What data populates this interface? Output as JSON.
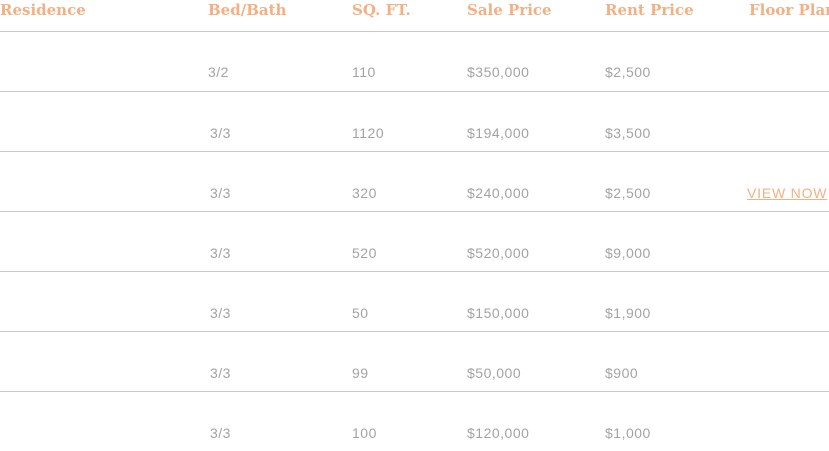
{
  "table": {
    "headers": {
      "residence": "Residence",
      "bed_bath": "Bed/Bath",
      "sqft": "SQ. FT.",
      "sale_price": "Sale Price",
      "rent_price": "Rent Price",
      "floor_plan": "Floor Plan"
    },
    "rows": [
      {
        "residence": "",
        "bed_bath": "3/2",
        "sqft": "110",
        "sale_price": "$350,000",
        "rent_price": "$2,500",
        "floor_plan": ""
      },
      {
        "residence": "",
        "bed_bath": "3/3",
        "sqft": "1120",
        "sale_price": "$194,000",
        "rent_price": "$3,500",
        "floor_plan": ""
      },
      {
        "residence": "",
        "bed_bath": "3/3",
        "sqft": "320",
        "sale_price": "$240,000",
        "rent_price": "$2,500",
        "floor_plan": "VIEW NOW"
      },
      {
        "residence": "",
        "bed_bath": "3/3",
        "sqft": "520",
        "sale_price": "$520,000",
        "rent_price": "$9,000",
        "floor_plan": ""
      },
      {
        "residence": "",
        "bed_bath": "3/3",
        "sqft": "50",
        "sale_price": "$150,000",
        "rent_price": "$1,900",
        "floor_plan": ""
      },
      {
        "residence": "",
        "bed_bath": "3/3",
        "sqft": "99",
        "sale_price": "$50,000",
        "rent_price": "$900",
        "floor_plan": ""
      },
      {
        "residence": "",
        "bed_bath": "3/3",
        "sqft": "100",
        "sale_price": "$120,000",
        "rent_price": "$1,000",
        "floor_plan": ""
      }
    ]
  },
  "colors": {
    "accent": "#f3b083",
    "cell_text": "#a3a3a3",
    "divider": "#c9c9c9"
  }
}
